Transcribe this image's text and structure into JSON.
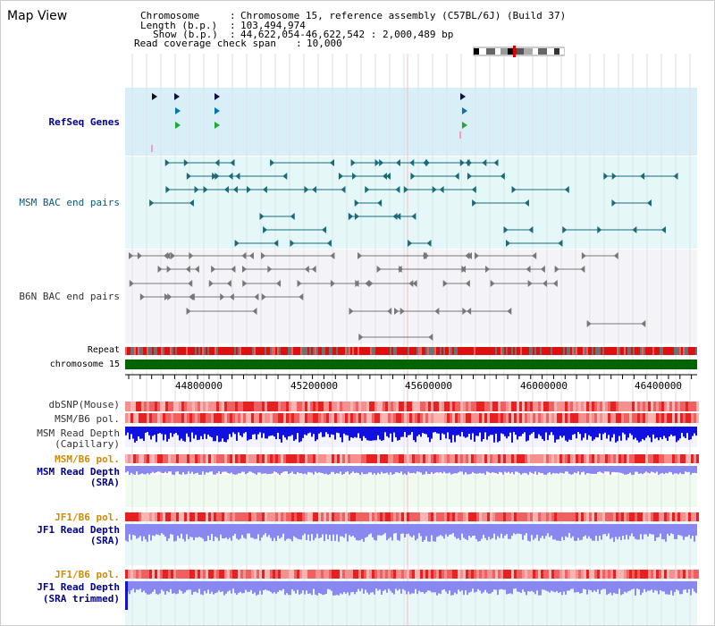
{
  "view_title": "Map View",
  "header": {
    "chromosome_label": "Chromosome",
    "chromosome_value": "Chromosome 15, reference assembly (C57BL/6J) (Build 37)",
    "length_label": "Length (b.p.)",
    "length_value": "103,494,974",
    "show_label": "Show (b.p.)",
    "show_value": "44,622,054-46,622,542 : 2,000,489 bp",
    "coverage_label": "Read coverage check span",
    "coverage_value": "10,000"
  },
  "tracks": {
    "refseq": "RefSeq Genes",
    "msm_bac": "MSM BAC end pairs",
    "b6n_bac": "B6N BAC end pairs",
    "repeat": "Repeat",
    "chromosome": "chromosome 15",
    "dbsnp": "dbSNP(Mouse)",
    "msm_b6_pol": "MSM/B6 pol.",
    "msm_depth_cap_1": "MSM Read Depth",
    "msm_depth_cap_2": "(Capillary)",
    "msm_b6_pol_2": "MSM/B6 pol.",
    "msm_depth_sra_1": "MSM Read Depth",
    "msm_depth_sra_2": "(SRA)",
    "jf1_b6_pol": "JF1/B6 pol.",
    "jf1_depth_sra_1": "JF1 Read Depth",
    "jf1_depth_sra_2": "(SRA)",
    "jf1_b6_pol_2": "JF1/B6 pol.",
    "jf1_depth_trim_1": "JF1 Read Depth",
    "jf1_depth_trim_2": "(SRA trimmed)"
  },
  "axis_ticks": [
    "44800000",
    "45200000",
    "45600000",
    "46000000",
    "46400000"
  ],
  "colors": {
    "refseq_bg": "#d8eef8",
    "msm_bac_bg": "#e4f8fa",
    "b6n_bac_bg": "#f4f4f8",
    "chromosome_bar": "#006400",
    "repeat_red": "#dd1010",
    "repeat_gray": "#707070",
    "pol_red": "#e82020",
    "pol_pink": "#fab4b4",
    "depth_blue": "#1010e0",
    "depth_light_blue": "#8888f0",
    "msm_sra_bg": "#f0fbf0",
    "jf1_bg": "#e8f8f8"
  }
}
